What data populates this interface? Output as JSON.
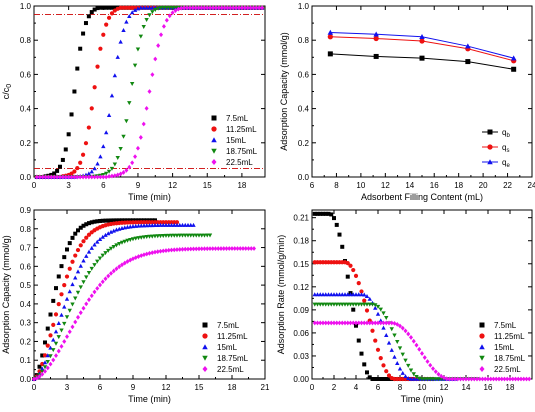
{
  "chart_data": [
    {
      "type": "scatter",
      "xlabel": "Time (min)",
      "ylabel_main": "c/c",
      "ylabel_sub": "0",
      "xlim": [
        0,
        20
      ],
      "ylim": [
        0,
        1.0
      ],
      "xticks": [
        0,
        3,
        6,
        9,
        12,
        15,
        18
      ],
      "yticks": [
        0.0,
        0.2,
        0.4,
        0.6,
        0.8,
        1.0
      ],
      "yticklabels": [
        "0.0",
        "0.2",
        "0.4",
        "0.6",
        "0.8",
        "1.0"
      ],
      "hlines": [
        0.05,
        0.95
      ],
      "legend_position": "bottom-right",
      "series": [
        {
          "name": "7.5mL",
          "color": "#000000",
          "marker": "square",
          "t50": 3.5,
          "k": 2.2,
          "xmax": 20
        },
        {
          "name": "11.25mL",
          "color": "#ee1111",
          "marker": "circle",
          "t50": 5.2,
          "k": 2.0,
          "xmax": 20
        },
        {
          "name": "15mL",
          "color": "#1111ee",
          "marker": "triangle-up",
          "t50": 6.8,
          "k": 1.9,
          "xmax": 20
        },
        {
          "name": "18.75mL",
          "color": "#118811",
          "marker": "triangle-down",
          "t50": 8.4,
          "k": 1.8,
          "xmax": 20
        },
        {
          "name": "22.5mL",
          "color": "#ee11ee",
          "marker": "diamond",
          "t50": 10.0,
          "k": 1.6,
          "xmax": 20
        }
      ]
    },
    {
      "type": "line",
      "xlabel": "Adsorbent Filling Content (mL)",
      "ylabel": "Adsorption Capacity (mmol/g)",
      "xlim": [
        6,
        24
      ],
      "ylim": [
        0,
        1.0
      ],
      "xticks": [
        6,
        8,
        10,
        12,
        14,
        16,
        18,
        20,
        22,
        24
      ],
      "yticks": [
        0.0,
        0.2,
        0.4,
        0.6,
        0.8,
        1.0
      ],
      "yticklabels": [
        "0.0",
        "0.2",
        "0.4",
        "0.6",
        "0.8",
        "1.0"
      ],
      "x": [
        7.5,
        11.25,
        15,
        18.75,
        22.5
      ],
      "legend_position": "bottom-right",
      "series": [
        {
          "name": "q",
          "sub": "b",
          "color": "#000000",
          "marker": "square",
          "values": [
            0.72,
            0.705,
            0.695,
            0.675,
            0.63
          ]
        },
        {
          "name": "q",
          "sub": "s",
          "color": "#ee1111",
          "marker": "circle",
          "values": [
            0.82,
            0.81,
            0.795,
            0.75,
            0.68
          ]
        },
        {
          "name": "q",
          "sub": "e",
          "color": "#1111ee",
          "marker": "triangle-up",
          "values": [
            0.845,
            0.835,
            0.82,
            0.765,
            0.695
          ]
        }
      ]
    },
    {
      "type": "scatter",
      "xlabel": "Time (min)",
      "ylabel": "Adsorption Capacity (mmol/g)",
      "xlim": [
        0,
        21
      ],
      "ylim": [
        0,
        0.9
      ],
      "xticks": [
        0,
        3,
        6,
        9,
        12,
        15,
        18,
        21
      ],
      "yticks": [
        0.0,
        0.1,
        0.2,
        0.3,
        0.4,
        0.5,
        0.6,
        0.7,
        0.8,
        0.9
      ],
      "yticklabels": [
        "0.0",
        "0.1",
        "0.2",
        "0.3",
        "0.4",
        "0.5",
        "0.6",
        "0.7",
        "0.8",
        "0.9"
      ],
      "legend_position": "bottom-right",
      "series": [
        {
          "name": "7.5mL",
          "color": "#000000",
          "marker": "square",
          "qmax": 0.845,
          "tau": 2.2,
          "xmax": 11
        },
        {
          "name": "11.25mL",
          "color": "#ee1111",
          "marker": "circle",
          "qmax": 0.835,
          "tau": 2.9,
          "xmax": 13
        },
        {
          "name": "15mL",
          "color": "#1111ee",
          "marker": "triangle-up",
          "qmax": 0.82,
          "tau": 3.6,
          "xmax": 14.5
        },
        {
          "name": "18.75mL",
          "color": "#118811",
          "marker": "triangle-down",
          "qmax": 0.765,
          "tau": 4.2,
          "xmax": 16
        },
        {
          "name": "22.5mL",
          "color": "#ee11ee",
          "marker": "diamond",
          "qmax": 0.695,
          "tau": 5.2,
          "xmax": 20
        }
      ]
    },
    {
      "type": "scatter",
      "xlabel": "Time (min)",
      "ylabel": "Adsorption Rate (mmol/g/min)",
      "xlim": [
        0,
        20
      ],
      "ylim": [
        0,
        0.22
      ],
      "xticks": [
        0,
        2,
        4,
        6,
        8,
        10,
        12,
        14,
        16,
        18
      ],
      "yticks": [
        0.0,
        0.03,
        0.06,
        0.09,
        0.12,
        0.15,
        0.18,
        0.21
      ],
      "yticklabels": [
        "0.00",
        "0.03",
        "0.06",
        "0.09",
        "0.12",
        "0.15",
        "0.18",
        "0.21"
      ],
      "legend_position": "bottom-right",
      "series": [
        {
          "name": "7.5mL",
          "color": "#000000",
          "marker": "square",
          "plateau": 0.215,
          "t1": 1.6,
          "t2": 5.5,
          "xmax": 9
        },
        {
          "name": "11.25mL",
          "color": "#ee1111",
          "marker": "circle",
          "plateau": 0.152,
          "t1": 3.0,
          "t2": 7.5,
          "xmax": 11
        },
        {
          "name": "15mL",
          "color": "#1111ee",
          "marker": "triangle-up",
          "plateau": 0.11,
          "t1": 4.6,
          "t2": 9.0,
          "xmax": 13
        },
        {
          "name": "18.75mL",
          "color": "#118811",
          "marker": "triangle-down",
          "plateau": 0.097,
          "t1": 5.5,
          "t2": 10.0,
          "xmax": 15
        },
        {
          "name": "22.5mL",
          "color": "#ee11ee",
          "marker": "diamond",
          "plateau": 0.073,
          "t1": 7.2,
          "t2": 12.5,
          "xmax": 20
        }
      ]
    }
  ]
}
